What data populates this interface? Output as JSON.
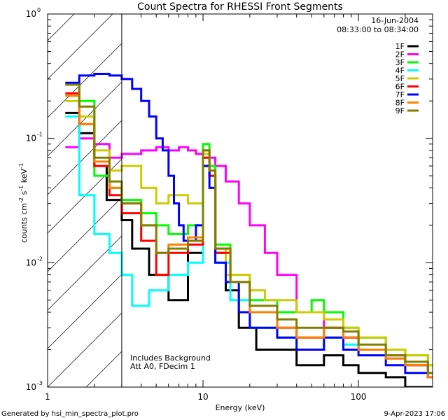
{
  "chart_data": {
    "type": "line",
    "title": "Count Spectra for RHESSI Front Segments",
    "xlabel": "Energy (keV)",
    "ylabel": "counts cm",
    "ylabel_sup1": "-2",
    "ylabel_mid": " s",
    "ylabel_sup2": "-1",
    "ylabel_end": " keV",
    "ylabel_sup3": "-1",
    "xscale": "log",
    "yscale": "log",
    "xlim": [
      1,
      300
    ],
    "ylim": [
      0.001,
      1
    ],
    "x_ticks": [
      {
        "value": 1,
        "label": "1"
      },
      {
        "value": 10,
        "label": "10"
      },
      {
        "value": 100,
        "label": "100"
      }
    ],
    "y_ticks": [
      {
        "value": 0.001,
        "base": "10",
        "exp": "-3"
      },
      {
        "value": 0.01,
        "base": "10",
        "exp": "-2"
      },
      {
        "value": 0.1,
        "base": "10",
        "exp": "-1"
      },
      {
        "value": 1,
        "base": "10",
        "exp": "0"
      }
    ],
    "date": "16-Jun-2004",
    "time_range": "08:33:00 to 08:34:00",
    "hatch_region_kev": [
      1,
      3
    ],
    "annotations": [
      "Includes Background",
      "Att A0, FDecim 1"
    ],
    "footer_left": "Generated by hsi_min_spectra_plot.pro",
    "footer_right": "9-Apr-2023 17:06",
    "series": [
      {
        "name": "1F",
        "color": "#000000",
        "points": [
          [
            1.3,
            0.16
          ],
          [
            1.6,
            0.11
          ],
          [
            2,
            0.06
          ],
          [
            2.4,
            0.032
          ],
          [
            3,
            0.022
          ],
          [
            3.5,
            0.013
          ],
          [
            4.5,
            0.008
          ],
          [
            6,
            0.005
          ],
          [
            8,
            0.012
          ],
          [
            10,
            0.06
          ],
          [
            11,
            0.05
          ],
          [
            12,
            0.012
          ],
          [
            14,
            0.006
          ],
          [
            17,
            0.003
          ],
          [
            22,
            0.002
          ],
          [
            30,
            0.002
          ],
          [
            40,
            0.0015
          ],
          [
            60,
            0.0018
          ],
          [
            80,
            0.0015
          ],
          [
            100,
            0.0013
          ],
          [
            150,
            0.0012
          ],
          [
            200,
            0.001
          ],
          [
            280,
            0.001
          ]
        ]
      },
      {
        "name": "2F",
        "color": "#ff00ff",
        "points": [
          [
            1.3,
            0.085
          ],
          [
            1.6,
            0.1
          ],
          [
            2,
            0.09
          ],
          [
            2.5,
            0.07
          ],
          [
            3,
            0.075
          ],
          [
            4,
            0.08
          ],
          [
            5,
            0.085
          ],
          [
            6,
            0.08
          ],
          [
            7,
            0.085
          ],
          [
            8,
            0.08
          ],
          [
            9,
            0.075
          ],
          [
            10,
            0.08
          ],
          [
            11,
            0.07
          ],
          [
            12,
            0.06
          ],
          [
            14,
            0.045
          ],
          [
            17,
            0.03
          ],
          [
            20,
            0.02
          ],
          [
            25,
            0.012
          ],
          [
            30,
            0.008
          ],
          [
            40,
            0.004
          ],
          [
            60,
            0.003
          ],
          [
            80,
            0.0025
          ],
          [
            100,
            0.002
          ],
          [
            150,
            0.0017
          ],
          [
            200,
            0.0015
          ],
          [
            280,
            0.0012
          ]
        ]
      },
      {
        "name": "3F",
        "color": "#00ff00",
        "points": [
          [
            1.3,
            0.27
          ],
          [
            1.6,
            0.2
          ],
          [
            2,
            0.05
          ],
          [
            2.5,
            0.04
          ],
          [
            3,
            0.032
          ],
          [
            4,
            0.025
          ],
          [
            5,
            0.02
          ],
          [
            6,
            0.017
          ],
          [
            8,
            0.02
          ],
          [
            10,
            0.09
          ],
          [
            11,
            0.06
          ],
          [
            12,
            0.014
          ],
          [
            15,
            0.008
          ],
          [
            20,
            0.005
          ],
          [
            30,
            0.004
          ],
          [
            40,
            0.004
          ],
          [
            50,
            0.005
          ],
          [
            60,
            0.004
          ],
          [
            80,
            0.003
          ],
          [
            100,
            0.0025
          ],
          [
            150,
            0.002
          ],
          [
            200,
            0.0018
          ],
          [
            280,
            0.0015
          ]
        ]
      },
      {
        "name": "4F",
        "color": "#00ffff",
        "points": [
          [
            1.3,
            0.15
          ],
          [
            1.6,
            0.035
          ],
          [
            2,
            0.017
          ],
          [
            2.5,
            0.012
          ],
          [
            3,
            0.008
          ],
          [
            3.5,
            0.0045
          ],
          [
            4.5,
            0.006
          ],
          [
            6,
            0.008
          ],
          [
            8,
            0.01
          ],
          [
            10,
            0.07
          ],
          [
            11,
            0.05
          ],
          [
            12,
            0.01
          ],
          [
            15,
            0.005
          ],
          [
            20,
            0.003
          ],
          [
            30,
            0.0025
          ],
          [
            40,
            0.002
          ],
          [
            60,
            0.0025
          ],
          [
            80,
            0.0022
          ],
          [
            100,
            0.002
          ],
          [
            150,
            0.0017
          ],
          [
            200,
            0.0015
          ],
          [
            280,
            0.0013
          ]
        ]
      },
      {
        "name": "5F",
        "color": "#cccc00",
        "points": [
          [
            1.3,
            0.2
          ],
          [
            1.6,
            0.15
          ],
          [
            2,
            0.08
          ],
          [
            2.5,
            0.055
          ],
          [
            3,
            0.06
          ],
          [
            4,
            0.04
          ],
          [
            5,
            0.03
          ],
          [
            6,
            0.035
          ],
          [
            8,
            0.03
          ],
          [
            10,
            0.075
          ],
          [
            11,
            0.055
          ],
          [
            12,
            0.013
          ],
          [
            14,
            0.008
          ],
          [
            17,
            0.008
          ],
          [
            20,
            0.006
          ],
          [
            25,
            0.005
          ],
          [
            30,
            0.005
          ],
          [
            40,
            0.004
          ],
          [
            60,
            0.0035
          ],
          [
            80,
            0.003
          ],
          [
            100,
            0.0025
          ],
          [
            150,
            0.002
          ],
          [
            200,
            0.0018
          ],
          [
            280,
            0.0015
          ]
        ]
      },
      {
        "name": "6F",
        "color": "#ff0000",
        "points": [
          [
            1.3,
            0.23
          ],
          [
            1.6,
            0.13
          ],
          [
            2,
            0.06
          ],
          [
            2.5,
            0.035
          ],
          [
            3,
            0.025
          ],
          [
            4,
            0.015
          ],
          [
            5,
            0.008
          ],
          [
            6,
            0.012
          ],
          [
            8,
            0.014
          ],
          [
            10,
            0.07
          ],
          [
            11,
            0.05
          ],
          [
            12,
            0.012
          ],
          [
            15,
            0.007
          ],
          [
            20,
            0.004
          ],
          [
            30,
            0.003
          ],
          [
            40,
            0.0025
          ],
          [
            60,
            0.003
          ],
          [
            80,
            0.0025
          ],
          [
            100,
            0.002
          ],
          [
            150,
            0.0018
          ],
          [
            200,
            0.0015
          ],
          [
            280,
            0.0013
          ]
        ]
      },
      {
        "name": "7F",
        "color": "#0000ff",
        "points": [
          [
            1.3,
            0.28
          ],
          [
            1.6,
            0.32
          ],
          [
            2,
            0.33
          ],
          [
            2.5,
            0.32
          ],
          [
            3,
            0.3
          ],
          [
            3.5,
            0.25
          ],
          [
            4,
            0.2
          ],
          [
            4.5,
            0.15
          ],
          [
            5,
            0.1
          ],
          [
            5.5,
            0.08
          ],
          [
            6,
            0.05
          ],
          [
            6.5,
            0.03
          ],
          [
            7,
            0.02
          ],
          [
            7.5,
            0.015
          ],
          [
            8,
            0.015
          ],
          [
            9,
            0.02
          ],
          [
            10,
            0.06
          ],
          [
            11,
            0.04
          ],
          [
            12,
            0.01
          ],
          [
            14,
            0.007
          ],
          [
            17,
            0.004
          ],
          [
            20,
            0.003
          ],
          [
            30,
            0.0025
          ],
          [
            40,
            0.002
          ],
          [
            60,
            0.0025
          ],
          [
            80,
            0.002
          ],
          [
            100,
            0.0018
          ],
          [
            150,
            0.0015
          ],
          [
            200,
            0.0013
          ],
          [
            280,
            0.0012
          ]
        ]
      },
      {
        "name": "8F",
        "color": "#ff8000",
        "points": [
          [
            1.3,
            0.22
          ],
          [
            1.6,
            0.13
          ],
          [
            2,
            0.065
          ],
          [
            2.5,
            0.04
          ],
          [
            3,
            0.03
          ],
          [
            4,
            0.02
          ],
          [
            5,
            0.012
          ],
          [
            6,
            0.014
          ],
          [
            8,
            0.016
          ],
          [
            10,
            0.08
          ],
          [
            11,
            0.055
          ],
          [
            12,
            0.013
          ],
          [
            15,
            0.007
          ],
          [
            20,
            0.004
          ],
          [
            30,
            0.003
          ],
          [
            40,
            0.0025
          ],
          [
            60,
            0.003
          ],
          [
            80,
            0.0025
          ],
          [
            100,
            0.002
          ],
          [
            150,
            0.0017
          ],
          [
            200,
            0.0015
          ],
          [
            280,
            0.0012
          ]
        ]
      },
      {
        "name": "9F",
        "color": "#808000",
        "points": [
          [
            1.3,
            0.27
          ],
          [
            1.6,
            0.18
          ],
          [
            2,
            0.07
          ],
          [
            2.5,
            0.045
          ],
          [
            3,
            0.03
          ],
          [
            4,
            0.02
          ],
          [
            5,
            0.012
          ],
          [
            6,
            0.013
          ],
          [
            8,
            0.015
          ],
          [
            10,
            0.08
          ],
          [
            11,
            0.055
          ],
          [
            12,
            0.013
          ],
          [
            15,
            0.007
          ],
          [
            20,
            0.0045
          ],
          [
            30,
            0.0035
          ],
          [
            40,
            0.003
          ],
          [
            60,
            0.003
          ],
          [
            80,
            0.0028
          ],
          [
            100,
            0.0022
          ],
          [
            150,
            0.0018
          ],
          [
            200,
            0.0016
          ],
          [
            280,
            0.0013
          ]
        ]
      }
    ]
  }
}
